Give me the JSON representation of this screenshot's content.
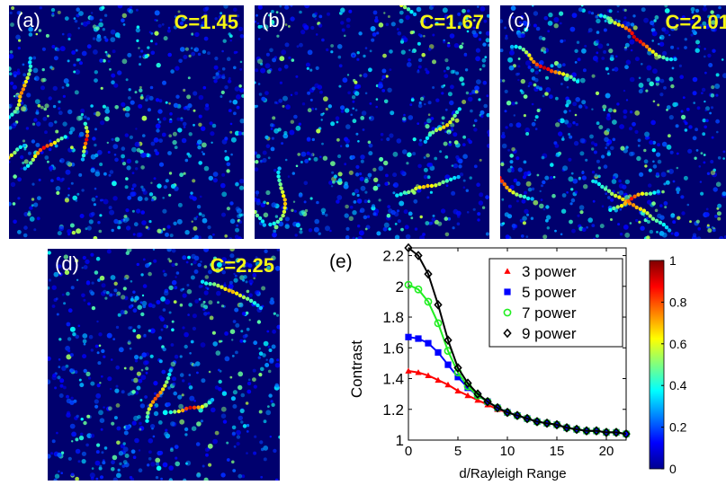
{
  "panels": [
    {
      "label": "(a)",
      "contrast": "C=1.45"
    },
    {
      "label": "(b)",
      "contrast": "C=1.67"
    },
    {
      "label": "(c)",
      "contrast": "C=2.01"
    },
    {
      "label": "(d)",
      "contrast": "C=2.25"
    }
  ],
  "chart_data": {
    "type": "line",
    "panel_label": "(e)",
    "xlabel": "d/Rayleigh Range",
    "ylabel": "Contrast",
    "xlim": [
      0,
      22
    ],
    "ylim": [
      1,
      2.25
    ],
    "xticks": [
      "0",
      "5",
      "10",
      "15",
      "20"
    ],
    "yticks": [
      "1",
      "1.2",
      "1.4",
      "1.6",
      "1.8",
      "2",
      "2.2"
    ],
    "legend_position": "top-right",
    "series": [
      {
        "name": "3 power",
        "marker": "triangle",
        "color": "#ff0000",
        "x": [
          0,
          1,
          2,
          3,
          4,
          5,
          6,
          7,
          8,
          9,
          10,
          11,
          12,
          13,
          14,
          15,
          16,
          17,
          18,
          19,
          20,
          21,
          22
        ],
        "y": [
          1.45,
          1.44,
          1.42,
          1.39,
          1.36,
          1.32,
          1.29,
          1.26,
          1.23,
          1.2,
          1.18,
          1.16,
          1.14,
          1.12,
          1.11,
          1.1,
          1.08,
          1.07,
          1.06,
          1.06,
          1.05,
          1.05,
          1.04
        ]
      },
      {
        "name": "5 power",
        "marker": "square",
        "color": "#0000ff",
        "x": [
          0,
          1,
          2,
          3,
          4,
          5,
          6,
          7,
          8,
          9,
          10,
          11,
          12,
          13,
          14,
          15,
          16,
          17,
          18,
          19,
          20,
          21,
          22
        ],
        "y": [
          1.67,
          1.66,
          1.63,
          1.57,
          1.49,
          1.41,
          1.34,
          1.29,
          1.25,
          1.21,
          1.18,
          1.16,
          1.14,
          1.12,
          1.11,
          1.1,
          1.08,
          1.07,
          1.06,
          1.06,
          1.05,
          1.05,
          1.04
        ]
      },
      {
        "name": "7 power",
        "marker": "circle",
        "color": "#22ee22",
        "x": [
          0,
          1,
          2,
          3,
          4,
          5,
          6,
          7,
          8,
          9,
          10,
          11,
          12,
          13,
          14,
          15,
          16,
          17,
          18,
          19,
          20,
          21,
          22
        ],
        "y": [
          2.01,
          1.98,
          1.9,
          1.76,
          1.58,
          1.44,
          1.35,
          1.29,
          1.25,
          1.21,
          1.18,
          1.16,
          1.14,
          1.12,
          1.11,
          1.1,
          1.08,
          1.07,
          1.06,
          1.06,
          1.05,
          1.05,
          1.04
        ]
      },
      {
        "name": "9 power",
        "marker": "diamond",
        "color": "#000000",
        "x": [
          0,
          1,
          2,
          3,
          4,
          5,
          6,
          7,
          8,
          9,
          10,
          11,
          12,
          13,
          14,
          15,
          16,
          17,
          18,
          19,
          20,
          21,
          22
        ],
        "y": [
          2.25,
          2.2,
          2.08,
          1.88,
          1.65,
          1.47,
          1.37,
          1.3,
          1.25,
          1.21,
          1.18,
          1.16,
          1.14,
          1.12,
          1.11,
          1.1,
          1.08,
          1.07,
          1.06,
          1.06,
          1.05,
          1.05,
          1.04
        ]
      }
    ],
    "colorbar": {
      "min": 0,
      "max": 1,
      "ticks": [
        "0",
        "0.2",
        "0.4",
        "0.6",
        "0.8",
        "1"
      ]
    }
  }
}
